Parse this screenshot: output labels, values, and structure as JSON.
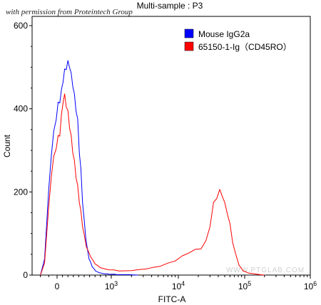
{
  "watermark": "with permission from Proteintech Group",
  "site_mark": "WWW.PTGLAB.COM",
  "chart_data": {
    "type": "line",
    "title": "Multi-sample : P3",
    "xlabel": "FITC-A",
    "ylabel": "Count",
    "x_scale": "biexponential",
    "x_ticks": [
      {
        "value": 0,
        "label": "0"
      },
      {
        "value": 1000,
        "label": "10",
        "exp": "3"
      },
      {
        "value": 10000,
        "label": "10",
        "exp": "4"
      },
      {
        "value": 100000,
        "label": "10",
        "exp": "5"
      },
      {
        "value": 1000000,
        "label": "10",
        "exp": "6"
      }
    ],
    "y_ticks": [
      0,
      200,
      400,
      600
    ],
    "ylim": [
      0,
      600
    ],
    "legend_position": "top-right",
    "series": [
      {
        "name": "Mouse IgG2a",
        "color": "#0000ff",
        "x": [
          -200,
          -150,
          -100,
          -70,
          -40,
          -10,
          20,
          50,
          80,
          110,
          140,
          170,
          200,
          230,
          260,
          290,
          320,
          350,
          380,
          410,
          440,
          470,
          500,
          530,
          560,
          590,
          620,
          650,
          680,
          710,
          740,
          770,
          800,
          840,
          880,
          920,
          960,
          1000,
          1100,
          1200,
          1400,
          1800,
          2500
        ],
        "values": [
          0,
          40,
          200,
          290,
          340,
          380,
          410,
          420,
          440,
          470,
          490,
          500,
          510,
          505,
          480,
          460,
          430,
          400,
          370,
          300,
          250,
          180,
          130,
          90,
          60,
          40,
          30,
          20,
          15,
          10,
          8,
          6,
          5,
          4,
          3,
          3,
          2,
          2,
          2,
          1,
          1,
          1,
          0
        ]
      },
      {
        "name": "65150-1-Ig（CD45RO）",
        "color": "#ff0000",
        "x": [
          -200,
          -150,
          -100,
          -70,
          -40,
          -10,
          20,
          50,
          80,
          110,
          140,
          170,
          200,
          230,
          260,
          290,
          320,
          350,
          380,
          410,
          440,
          470,
          500,
          540,
          580,
          620,
          660,
          700,
          750,
          800,
          870,
          950,
          1100,
          1300,
          1600,
          2000,
          2600,
          3300,
          4200,
          5400,
          7000,
          9000,
          11500,
          14500,
          18000,
          22000,
          26000,
          30000,
          34000,
          38000,
          42000,
          46000,
          50000,
          55000,
          60000,
          66000,
          73000,
          82000,
          95000,
          115000,
          140000,
          170000,
          200000
        ],
        "values": [
          0,
          30,
          160,
          240,
          280,
          310,
          330,
          340,
          380,
          420,
          430,
          410,
          390,
          360,
          330,
          300,
          270,
          240,
          210,
          180,
          150,
          120,
          95,
          70,
          55,
          45,
          35,
          28,
          22,
          18,
          15,
          13,
          12,
          10,
          10,
          11,
          13,
          15,
          18,
          22,
          28,
          35,
          45,
          55,
          60,
          65,
          80,
          120,
          170,
          190,
          200,
          195,
          170,
          150,
          120,
          80,
          50,
          25,
          10,
          5,
          3,
          1,
          0
        ]
      }
    ]
  }
}
